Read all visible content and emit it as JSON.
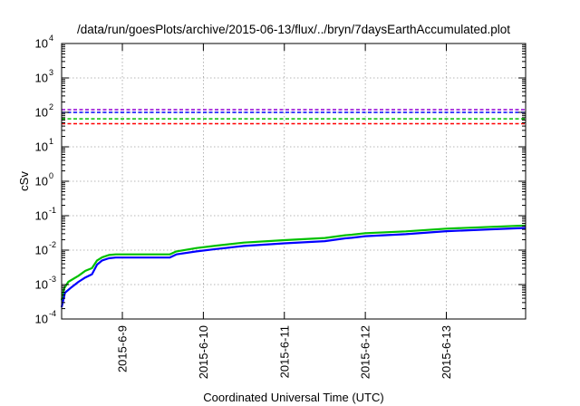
{
  "chart_data": {
    "type": "line",
    "title": "/data/run/goesPlots/archive/2015-06-13/flux/../bryn/7daysEarthAccumulated.plot",
    "xlabel": "Coordinated Universal Time (UTC)",
    "ylabel": "cSv",
    "yscale": "log",
    "ylim": [
      0.0001,
      10000
    ],
    "xlim": [
      "2015-06-08T06:00",
      "2015-06-13T23:30"
    ],
    "x_ticks": [
      {
        "x": "2015-06-09T00:00",
        "label": "2015-6-9"
      },
      {
        "x": "2015-06-10T00:00",
        "label": "2015-6-10"
      },
      {
        "x": "2015-06-11T00:00",
        "label": "2015-6-11"
      },
      {
        "x": "2015-06-12T00:00",
        "label": "2015-6-12"
      },
      {
        "x": "2015-06-13T00:00",
        "label": "2015-6-13"
      }
    ],
    "y_ticks": [
      {
        "value": 0.0001,
        "base": "10",
        "exp": "-4"
      },
      {
        "value": 0.001,
        "base": "10",
        "exp": "-3"
      },
      {
        "value": 0.01,
        "base": "10",
        "exp": "-2"
      },
      {
        "value": 0.1,
        "base": "10",
        "exp": "-1"
      },
      {
        "value": 1,
        "base": "10",
        "exp": "0"
      },
      {
        "value": 10,
        "base": "10",
        "exp": "1"
      },
      {
        "value": 100,
        "base": "10",
        "exp": "2"
      },
      {
        "value": 1000,
        "base": "10",
        "exp": "3"
      },
      {
        "value": 10000,
        "base": "10",
        "exp": "4"
      }
    ],
    "grid": true,
    "legend": "none",
    "reference_lines": [
      {
        "y": 120,
        "color": "#9400d3"
      },
      {
        "y": 100,
        "color": "#0000ff"
      },
      {
        "y": 65,
        "color": "#00c000"
      },
      {
        "y": 47,
        "color": "#ff0000"
      }
    ],
    "series": [
      {
        "color": "#00c000",
        "x": [
          "2015-06-08T06:00",
          "2015-06-08T06:40",
          "2015-06-08T08:00",
          "2015-06-08T11:00",
          "2015-06-08T13:00",
          "2015-06-08T15:00",
          "2015-06-08T16:30",
          "2015-06-08T18:00",
          "2015-06-08T20:00",
          "2015-06-08T22:00",
          "2015-06-09T12:00",
          "2015-06-09T14:00",
          "2015-06-09T16:00",
          "2015-06-09T22:00",
          "2015-06-10T04:00",
          "2015-06-10T12:00",
          "2015-06-11T00:00",
          "2015-06-11T12:00",
          "2015-06-11T18:00",
          "2015-06-11T20:00",
          "2015-06-12T00:00",
          "2015-06-12T12:00",
          "2015-06-13T00:00",
          "2015-06-13T23:30"
        ],
        "values": [
          0.00035,
          0.00075,
          0.0012,
          0.0018,
          0.0025,
          0.003,
          0.005,
          0.0062,
          0.0072,
          0.0075,
          0.0075,
          0.0075,
          0.0092,
          0.0115,
          0.0135,
          0.0165,
          0.0195,
          0.0225,
          0.027,
          0.028,
          0.031,
          0.035,
          0.042,
          0.052
        ]
      },
      {
        "color": "#0000ff",
        "x": [
          "2015-06-08T06:00",
          "2015-06-08T07:00",
          "2015-06-08T09:00",
          "2015-06-08T11:00",
          "2015-06-08T13:00",
          "2015-06-08T15:00",
          "2015-06-08T16:30",
          "2015-06-08T18:00",
          "2015-06-08T20:00",
          "2015-06-08T22:00",
          "2015-06-09T12:00",
          "2015-06-09T14:00",
          "2015-06-09T16:00",
          "2015-06-09T22:00",
          "2015-06-10T04:00",
          "2015-06-10T12:00",
          "2015-06-11T00:00",
          "2015-06-11T12:00",
          "2015-06-11T18:00",
          "2015-06-11T20:00",
          "2015-06-12T00:00",
          "2015-06-12T12:00",
          "2015-06-13T00:00",
          "2015-06-13T23:30"
        ],
        "values": [
          0.00022,
          0.00058,
          0.00085,
          0.0012,
          0.0016,
          0.002,
          0.0038,
          0.005,
          0.0058,
          0.0061,
          0.0061,
          0.0061,
          0.0075,
          0.0092,
          0.0108,
          0.0132,
          0.0158,
          0.0182,
          0.022,
          0.0228,
          0.0255,
          0.029,
          0.0355,
          0.044
        ]
      }
    ]
  }
}
